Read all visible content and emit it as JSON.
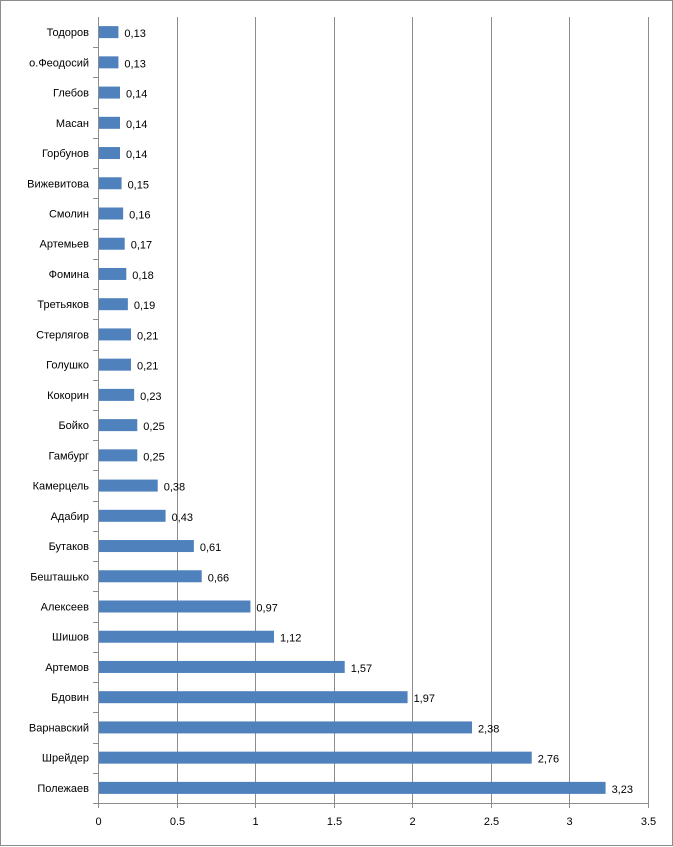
{
  "chart_data": {
    "type": "bar",
    "orientation": "horizontal",
    "categories": [
      "Полежаев",
      "Шрейдер",
      "Варнавский",
      "Бдовин",
      "Артемов",
      "Шишов",
      "Алексеев",
      "Бешташько",
      "Бутаков",
      "Адабир",
      "Камерцель",
      "Гамбург",
      "Бойко",
      "Кокорин",
      "Голушко",
      "Стерлягов",
      "Третьяков",
      "Фомина",
      "Артемьев",
      "Смолин",
      "Вижевитова",
      "Горбунов",
      "Масан",
      "Глебов",
      "о.Феодосий",
      "Тодоров"
    ],
    "values": [
      3.23,
      2.76,
      2.38,
      1.97,
      1.57,
      1.12,
      0.97,
      0.66,
      0.61,
      0.43,
      0.38,
      0.25,
      0.25,
      0.23,
      0.21,
      0.21,
      0.19,
      0.18,
      0.17,
      0.16,
      0.15,
      0.14,
      0.14,
      0.14,
      0.13,
      0.13
    ],
    "value_labels": [
      "3,23",
      "2,76",
      "2,38",
      "1,97",
      "1,57",
      "1,12",
      "0,97",
      "0,66",
      "0,61",
      "0,43",
      "0,38",
      "0,25",
      "0,25",
      "0,23",
      "0,21",
      "0,21",
      "0,19",
      "0,18",
      "0,17",
      "0,16",
      "0,15",
      "0,14",
      "0,14",
      "0,14",
      "0,13",
      "0,13"
    ],
    "xticks": [
      "0",
      "0.5",
      "1",
      "1.5",
      "2",
      "2.5",
      "3",
      "3.5"
    ],
    "xlim": [
      0,
      3.5
    ],
    "grid": true,
    "legend": "none",
    "bar_color": "#4f81bd",
    "title": "",
    "xlabel": "",
    "ylabel": ""
  }
}
